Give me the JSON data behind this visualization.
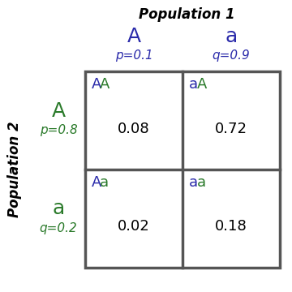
{
  "title_pop1": "Population 1",
  "title_pop2": "Population 2",
  "col_alleles": [
    "A",
    "a"
  ],
  "col_freqs": [
    "p=0.1",
    "q=0.9"
  ],
  "row_alleles": [
    "A",
    "a"
  ],
  "row_freqs": [
    "p=0.8",
    "q=0.2"
  ],
  "cell_genotypes": [
    [
      "AA",
      "aA"
    ],
    [
      "Aa",
      "aa"
    ]
  ],
  "cell_values": [
    [
      "0.08",
      "0.72"
    ],
    [
      "0.02",
      "0.18"
    ]
  ],
  "purple_color": "#2a2aaa",
  "green_color": "#2a7a2a",
  "black_color": "#000000",
  "grid_color": "#555555",
  "grid_linewidth": 2.5,
  "fig_bg": "#ffffff",
  "col_allele_fontsize": 18,
  "col_freq_fontsize": 11,
  "row_allele_fontsize": 18,
  "row_freq_fontsize": 11,
  "genotype_fontsize": 13,
  "value_fontsize": 13,
  "title_fontsize": 12
}
